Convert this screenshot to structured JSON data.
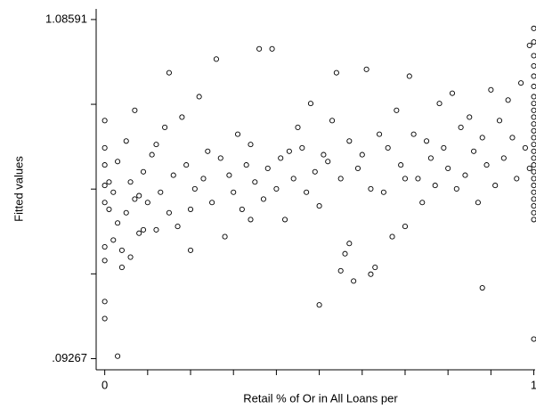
{
  "chart_data": {
    "type": "scatter",
    "x_label": "Retail % of Or in All Loans per",
    "y_label": "Fitted values",
    "xlim": [
      -0.02,
      1.003
    ],
    "ylim": [
      0.06,
      1.117
    ],
    "xticks": [
      0,
      1
    ],
    "xticks_unlabeled": [
      0.1,
      0.2,
      0.3,
      0.4,
      0.5,
      0.6,
      0.7,
      0.8,
      0.9
    ],
    "yticks": [
      {
        "value": 0.09267,
        "label": ".09267"
      },
      1.08591
    ],
    "yticks_unlabeled": [
      0.34098,
      0.58929,
      0.8376
    ],
    "color": "#000000",
    "x": [
      0,
      0,
      0,
      0,
      0,
      0,
      0,
      0,
      0,
      0.01,
      0.01,
      0.02,
      0.02,
      0.03,
      0.03,
      0.03,
      0.04,
      0.04,
      0.05,
      0.05,
      0.06,
      0.06,
      0.07,
      0.07,
      0.08,
      0.08,
      0.09,
      0.09,
      0.1,
      0.11,
      0.12,
      0.12,
      0.13,
      0.14,
      0.15,
      0.15,
      0.16,
      0.17,
      0.18,
      0.19,
      0.2,
      0.21,
      0.22,
      0.23,
      0.24,
      0.25,
      0.26,
      0.27,
      0.28,
      0.29,
      0.3,
      0.31,
      0.32,
      0.33,
      0.34,
      0.35,
      0.36,
      0.37,
      0.38,
      0.39,
      0.4,
      0.41,
      0.42,
      0.43,
      0.44,
      0.45,
      0.46,
      0.47,
      0.48,
      0.49,
      0.5,
      0.51,
      0.52,
      0.53,
      0.54,
      0.55,
      0.56,
      0.57,
      0.58,
      0.59,
      0.6,
      0.61,
      0.62,
      0.63,
      0.64,
      0.65,
      0.66,
      0.67,
      0.68,
      0.69,
      0.7,
      0.71,
      0.72,
      0.73,
      0.74,
      0.75,
      0.76,
      0.77,
      0.78,
      0.79,
      0.8,
      0.81,
      0.82,
      0.83,
      0.84,
      0.85,
      0.86,
      0.87,
      0.88,
      0.89,
      0.9,
      0.91,
      0.92,
      0.93,
      0.94,
      0.95,
      0.96,
      0.97,
      0.98,
      0.99,
      0.99,
      1,
      1,
      1,
      1,
      1,
      1,
      1,
      1,
      1,
      1,
      1,
      1,
      1,
      1,
      1,
      1,
      1,
      1,
      1,
      1,
      1,
      1,
      1,
      1,
      1,
      1,
      0.55,
      0.62,
      0.57,
      0.5,
      0.7,
      0.88,
      0.34,
      0.2
    ],
    "values": [
      0.21,
      0.26,
      0.38,
      0.42,
      0.55,
      0.6,
      0.66,
      0.71,
      0.79,
      0.53,
      0.61,
      0.58,
      0.44,
      0.67,
      0.49,
      0.1,
      0.36,
      0.41,
      0.52,
      0.73,
      0.39,
      0.61,
      0.56,
      0.82,
      0.57,
      0.46,
      0.64,
      0.47,
      0.55,
      0.69,
      0.72,
      0.47,
      0.58,
      0.77,
      0.93,
      0.52,
      0.63,
      0.48,
      0.8,
      0.66,
      0.53,
      0.59,
      0.86,
      0.62,
      0.7,
      0.55,
      0.97,
      0.68,
      0.45,
      0.63,
      0.58,
      0.75,
      0.53,
      0.66,
      0.72,
      0.61,
      1.0,
      0.56,
      0.65,
      1.0,
      0.59,
      0.68,
      0.5,
      0.7,
      0.62,
      0.77,
      0.71,
      0.58,
      0.84,
      0.64,
      0.54,
      0.69,
      0.67,
      0.79,
      0.93,
      0.62,
      0.4,
      0.73,
      0.32,
      0.65,
      0.69,
      0.94,
      0.59,
      0.36,
      0.75,
      0.58,
      0.71,
      0.45,
      0.82,
      0.66,
      0.62,
      0.92,
      0.75,
      0.62,
      0.55,
      0.73,
      0.68,
      0.6,
      0.84,
      0.71,
      0.65,
      0.87,
      0.59,
      0.77,
      0.63,
      0.8,
      0.7,
      0.55,
      0.74,
      0.66,
      0.88,
      0.6,
      0.79,
      0.68,
      0.85,
      0.74,
      0.62,
      0.9,
      0.71,
      1.01,
      0.65,
      1.06,
      1.02,
      0.98,
      0.95,
      0.92,
      0.89,
      0.86,
      0.84,
      0.82,
      0.8,
      0.78,
      0.76,
      0.74,
      0.72,
      0.7,
      0.68,
      0.66,
      0.64,
      0.62,
      0.6,
      0.58,
      0.56,
      0.54,
      0.52,
      0.5,
      0.15,
      0.35,
      0.34,
      0.43,
      0.25,
      0.48,
      0.3,
      0.5,
      0.41
    ]
  }
}
